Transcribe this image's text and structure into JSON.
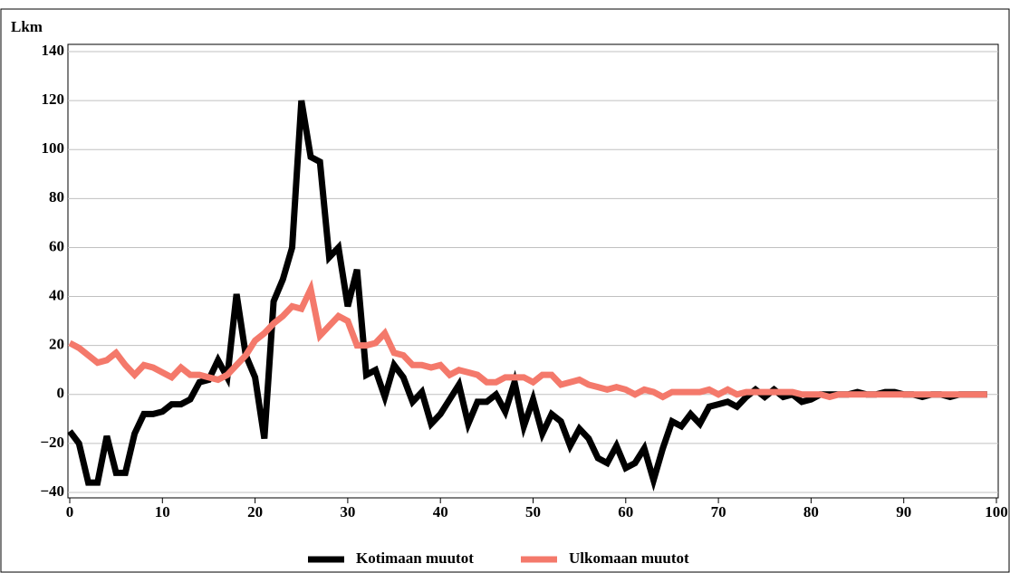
{
  "chart_data": {
    "type": "line",
    "y_label": "Lkm",
    "x": [
      0,
      1,
      2,
      3,
      4,
      5,
      6,
      7,
      8,
      9,
      10,
      11,
      12,
      13,
      14,
      15,
      16,
      17,
      18,
      19,
      20,
      21,
      22,
      23,
      24,
      25,
      26,
      27,
      28,
      29,
      30,
      31,
      32,
      33,
      34,
      35,
      36,
      37,
      38,
      39,
      40,
      41,
      42,
      43,
      44,
      45,
      46,
      47,
      48,
      49,
      50,
      51,
      52,
      53,
      54,
      55,
      56,
      57,
      58,
      59,
      60,
      61,
      62,
      63,
      64,
      65,
      66,
      67,
      68,
      69,
      70,
      71,
      72,
      73,
      74,
      75,
      76,
      77,
      78,
      79,
      80,
      81,
      82,
      83,
      84,
      85,
      86,
      87,
      88,
      89,
      90,
      91,
      92,
      93,
      94,
      95,
      96,
      97,
      98,
      99
    ],
    "series": [
      {
        "name": "Kotimaan muutot",
        "color": "#000000",
        "values": [
          -15,
          -20,
          -36,
          -36,
          -17,
          -32,
          -32,
          -16,
          -8,
          -8,
          -7,
          -4,
          -4,
          -2,
          5,
          6,
          14,
          7,
          41,
          16,
          7,
          -18,
          38,
          47,
          60,
          120,
          97,
          95,
          56,
          60,
          36,
          51,
          8,
          10,
          -1,
          12,
          7,
          -3,
          1,
          -12,
          -8,
          -2,
          4,
          -12,
          -3,
          -3,
          0,
          -7,
          5,
          -13,
          -2,
          -16,
          -8,
          -11,
          -21,
          -14,
          -18,
          -26,
          -28,
          -21,
          -30,
          -28,
          -22,
          -35,
          -22,
          -11,
          -13,
          -8,
          -12,
          -5,
          -4,
          -3,
          -5,
          -1,
          2,
          -1,
          2,
          -1,
          0,
          -3,
          -2,
          0,
          0,
          0,
          0,
          1,
          0,
          0,
          1,
          1,
          0,
          0,
          -1,
          0,
          0,
          -1,
          0,
          0,
          0,
          0
        ]
      },
      {
        "name": "Ulkomaan muutot",
        "color": "#f4796b",
        "values": [
          21,
          19,
          16,
          13,
          14,
          17,
          12,
          8,
          12,
          11,
          9,
          7,
          11,
          8,
          8,
          7,
          6,
          8,
          12,
          16,
          22,
          25,
          29,
          32,
          36,
          35,
          43,
          24,
          28,
          32,
          30,
          20,
          20,
          21,
          25,
          17,
          16,
          12,
          12,
          11,
          12,
          8,
          10,
          9,
          8,
          5,
          5,
          7,
          7,
          7,
          5,
          8,
          8,
          4,
          5,
          6,
          4,
          3,
          2,
          3,
          2,
          0,
          2,
          1,
          -1,
          1,
          1,
          1,
          1,
          2,
          0,
          2,
          0,
          1,
          1,
          1,
          1,
          1,
          1,
          0,
          0,
          0,
          -1,
          0,
          0,
          0,
          0,
          0,
          0,
          0,
          0,
          0,
          0,
          0,
          0,
          0,
          0,
          0,
          0,
          0
        ]
      }
    ],
    "xlim": [
      0,
      100
    ],
    "xticks": [
      0,
      10,
      20,
      30,
      40,
      50,
      60,
      70,
      80,
      90,
      100
    ],
    "ylim": [
      -40,
      140
    ],
    "yticks": [
      {
        "value": -40,
        "label": "−40"
      },
      {
        "value": -20,
        "label": "−20"
      },
      0,
      20,
      40,
      60,
      80,
      100,
      120,
      140
    ],
    "grid": true,
    "legend": "bottom"
  }
}
